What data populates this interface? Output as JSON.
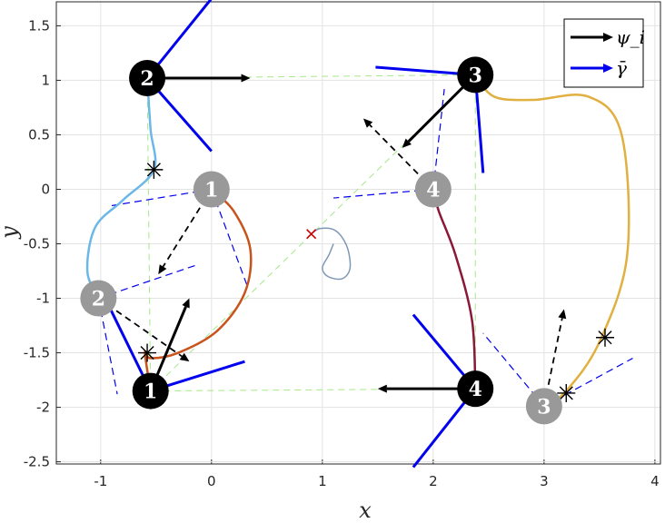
{
  "chart_data": {
    "type": "line",
    "title": "",
    "xlabel": "x",
    "ylabel": "y",
    "xlim": [
      -1.4,
      4.05
    ],
    "ylim": [
      -2.52,
      1.72
    ],
    "xticks": [
      -1,
      0,
      1,
      2,
      3,
      4
    ],
    "yticks": [
      1.5,
      1,
      0.5,
      0,
      -0.5,
      -1,
      -1.5,
      -2,
      -2.5
    ],
    "xtick_labels": [
      "-1",
      "0",
      "1",
      "2",
      "3",
      "4"
    ],
    "ytick_labels": [
      "1.5",
      "1",
      "0.5",
      "0",
      "-0.5",
      "-1",
      "-1.5",
      "-2",
      "-2.5"
    ],
    "grid": true,
    "legend": {
      "position": "top-right",
      "entries": [
        {
          "label": "ψ_i",
          "color": "#000000"
        },
        {
          "label": "γ̄",
          "color": "#0000ee"
        }
      ]
    },
    "colors": {
      "agent_current": "#000000",
      "agent_initial": "#999999",
      "psi_arrow": "#000000",
      "gamma_lines": "#0000ee",
      "formation": "#a6e88a",
      "centroid_marker": "#cc0000",
      "centroid_path": "#7f98b5"
    },
    "agents_current": [
      {
        "id": "1",
        "x": -0.55,
        "y": -1.85
      },
      {
        "id": "2",
        "x": -0.58,
        "y": 1.02
      },
      {
        "id": "3",
        "x": 2.38,
        "y": 1.05
      },
      {
        "id": "4",
        "x": 2.38,
        "y": -1.83
      }
    ],
    "agents_initial": [
      {
        "id": "1",
        "x": 0.0,
        "y": 0.0
      },
      {
        "id": "2",
        "x": -1.02,
        "y": -1.0
      },
      {
        "id": "3",
        "x": 3.0,
        "y": -1.99
      },
      {
        "id": "4",
        "x": 2.0,
        "y": 0.0
      }
    ],
    "trajectories": [
      {
        "agent": "1",
        "color": "#c8531d",
        "points": [
          [
            0,
            0
          ],
          [
            0.2,
            -0.2
          ],
          [
            0.35,
            -0.55
          ],
          [
            0.3,
            -0.95
          ],
          [
            0.05,
            -1.3
          ],
          [
            -0.3,
            -1.5
          ],
          [
            -0.55,
            -1.55
          ],
          [
            -0.6,
            -1.5
          ],
          [
            -0.55,
            -1.85
          ]
        ]
      },
      {
        "agent": "2",
        "color": "#6bb8e8",
        "points": [
          [
            -1.02,
            -1.0
          ],
          [
            -1.12,
            -0.75
          ],
          [
            -1.05,
            -0.35
          ],
          [
            -0.8,
            -0.1
          ],
          [
            -0.52,
            0.18
          ],
          [
            -0.55,
            0.55
          ],
          [
            -0.58,
            1.02
          ]
        ]
      },
      {
        "agent": "3",
        "color": "#e0b040",
        "points": [
          [
            3.0,
            -1.99
          ],
          [
            3.2,
            -1.85
          ],
          [
            3.5,
            -1.4
          ],
          [
            3.75,
            -0.6
          ],
          [
            3.7,
            0.5
          ],
          [
            3.4,
            0.85
          ],
          [
            2.9,
            0.82
          ],
          [
            2.55,
            0.85
          ],
          [
            2.38,
            1.05
          ]
        ]
      },
      {
        "agent": "4",
        "color": "#8a1838",
        "points": [
          [
            2.0,
            0.0
          ],
          [
            2.05,
            -0.2
          ],
          [
            2.2,
            -0.6
          ],
          [
            2.35,
            -1.2
          ],
          [
            2.38,
            -1.83
          ]
        ]
      }
    ],
    "switch_markers": [
      {
        "x": -0.52,
        "y": 0.18
      },
      {
        "x": -1.03,
        "y": -1.07
      },
      {
        "x": -0.58,
        "y": -1.5
      },
      {
        "x": 3.2,
        "y": -1.87
      },
      {
        "x": 3.55,
        "y": -1.36
      }
    ],
    "centroid_marker": {
      "x": 0.9,
      "y": -0.41
    },
    "centroid_path": [
      [
        0.9,
        -0.41
      ],
      [
        0.98,
        -0.36
      ],
      [
        1.12,
        -0.38
      ],
      [
        1.22,
        -0.52
      ],
      [
        1.25,
        -0.72
      ],
      [
        1.18,
        -0.82
      ],
      [
        1.05,
        -0.8
      ],
      [
        1.0,
        -0.72
      ],
      [
        1.06,
        -0.6
      ],
      [
        1.1,
        -0.5
      ]
    ],
    "formation_lines": [
      [
        [
          -0.55,
          -1.85
        ],
        [
          -0.58,
          1.02
        ]
      ],
      [
        [
          -0.58,
          1.02
        ],
        [
          2.38,
          1.05
        ]
      ],
      [
        [
          2.38,
          1.05
        ],
        [
          2.38,
          -1.83
        ]
      ],
      [
        [
          2.38,
          -1.83
        ],
        [
          -0.55,
          -1.85
        ]
      ],
      [
        [
          -0.55,
          -1.85
        ],
        [
          2.38,
          1.05
        ]
      ]
    ],
    "psi_arrows_current": [
      {
        "from": [
          -0.55,
          -1.85
        ],
        "to": [
          -0.2,
          -1.0
        ]
      },
      {
        "from": [
          -0.58,
          1.02
        ],
        "to": [
          0.35,
          1.02
        ]
      },
      {
        "from": [
          2.38,
          1.05
        ],
        "to": [
          1.72,
          0.38
        ]
      },
      {
        "from": [
          2.38,
          -1.83
        ],
        "to": [
          1.5,
          -1.83
        ]
      }
    ],
    "psi_arrows_initial": [
      {
        "from": [
          0.0,
          0.0
        ],
        "to": [
          -0.48,
          -0.78
        ]
      },
      {
        "from": [
          -1.02,
          -1.0
        ],
        "to": [
          -0.2,
          -1.58
        ]
      },
      {
        "from": [
          3.0,
          -1.99
        ],
        "to": [
          3.18,
          -1.1
        ]
      },
      {
        "from": [
          2.0,
          0.0
        ],
        "to": [
          1.37,
          0.65
        ]
      }
    ],
    "gamma_lines_current": [
      [
        [
          -0.55,
          -1.85
        ],
        [
          0.3,
          -1.58
        ]
      ],
      [
        [
          -0.55,
          -1.85
        ],
        [
          -0.95,
          -1.02
        ]
      ],
      [
        [
          -0.58,
          1.02
        ],
        [
          0.0,
          1.75
        ]
      ],
      [
        [
          -0.58,
          1.02
        ],
        [
          0.0,
          0.35
        ]
      ],
      [
        [
          2.38,
          1.05
        ],
        [
          1.48,
          1.12
        ]
      ],
      [
        [
          2.38,
          1.05
        ],
        [
          2.45,
          0.15
        ]
      ],
      [
        [
          2.38,
          -1.83
        ],
        [
          1.82,
          -1.15
        ]
      ],
      [
        [
          2.38,
          -1.83
        ],
        [
          1.82,
          -2.55
        ]
      ]
    ],
    "gamma_lines_initial": [
      [
        [
          0.0,
          0.0
        ],
        [
          -0.9,
          -0.15
        ]
      ],
      [
        [
          0.0,
          0.0
        ],
        [
          0.32,
          -0.88
        ]
      ],
      [
        [
          -1.02,
          -1.0
        ],
        [
          -0.15,
          -0.7
        ]
      ],
      [
        [
          -1.02,
          -1.0
        ],
        [
          -0.85,
          -1.88
        ]
      ],
      [
        [
          3.0,
          -1.99
        ],
        [
          3.8,
          -1.55
        ]
      ],
      [
        [
          3.0,
          -1.99
        ],
        [
          2.45,
          -1.32
        ]
      ],
      [
        [
          2.0,
          0.0
        ],
        [
          1.1,
          -0.08
        ]
      ],
      [
        [
          2.0,
          0.0
        ],
        [
          2.1,
          0.92
        ]
      ]
    ]
  }
}
